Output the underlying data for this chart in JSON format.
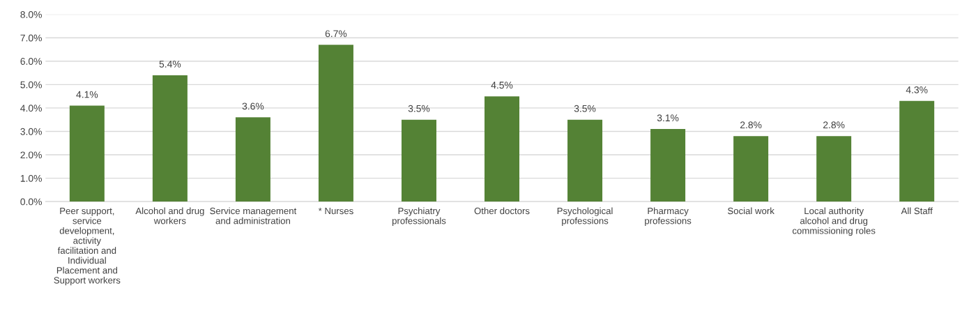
{
  "chart_data": {
    "type": "bar",
    "categories": [
      "Peer support, service development, activity facilitation and Individual Placement and Support workers",
      "Alcohol and drug workers",
      "Service management and administration",
      "* Nurses",
      "Psychiatry professionals",
      "Other doctors",
      "Psychological professions",
      "Pharmacy professions",
      "Social work",
      "Local authority alcohol and drug commissioning roles",
      "All Staff"
    ],
    "values": [
      4.1,
      5.4,
      3.6,
      6.7,
      3.5,
      4.5,
      3.5,
      3.1,
      2.8,
      2.8,
      4.3
    ],
    "color": "#548235",
    "data_labels": true,
    "value_labels": [
      "4.1%",
      "5.4%",
      "3.6%",
      "6.7%",
      "3.5%",
      "4.5%",
      "3.5%",
      "3.1%",
      "2.8%",
      "2.8%",
      "4.3%"
    ],
    "ylim": [
      0,
      8
    ],
    "yticks": [
      {
        "value": 0,
        "label": "0.0%"
      },
      {
        "value": 1,
        "label": "1.0%"
      },
      {
        "value": 2,
        "label": "2.0%"
      },
      {
        "value": 3,
        "label": "3.0%"
      },
      {
        "value": 4,
        "label": "4.0%"
      },
      {
        "value": 5,
        "label": "5.0%"
      },
      {
        "value": 6,
        "label": "6.0%"
      },
      {
        "value": 7,
        "label": "7.0%"
      },
      {
        "value": 8,
        "label": "8.0%"
      }
    ],
    "grid": "y"
  }
}
